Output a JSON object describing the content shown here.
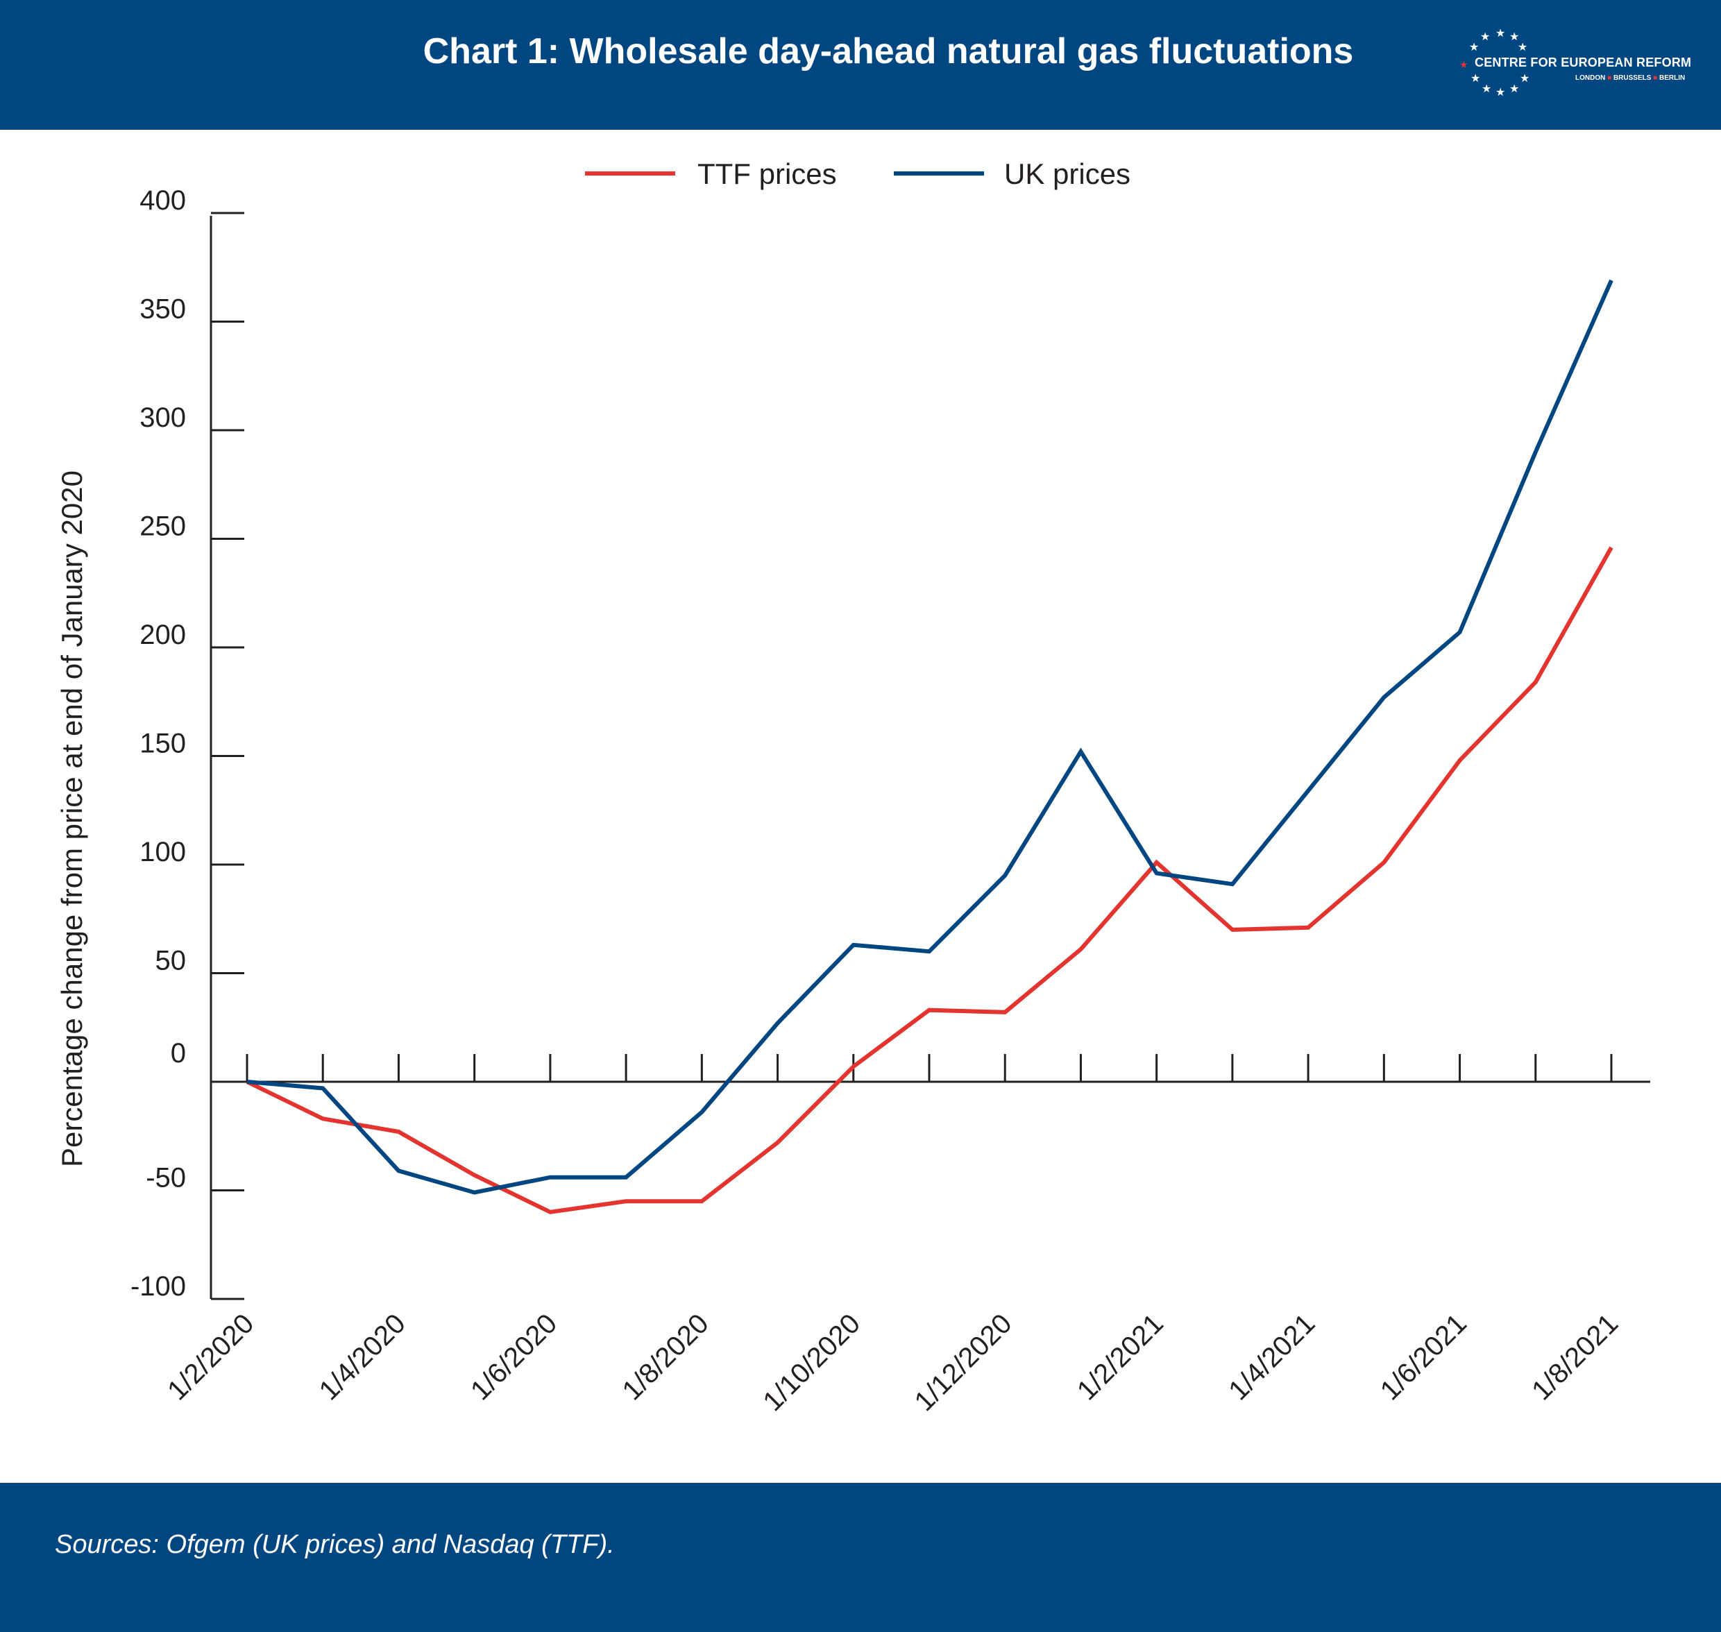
{
  "header": {
    "title": "Chart 1: Wholesale day-ahead natural gas fluctuations",
    "logo": {
      "name": "CENTRE FOR EUROPEAN REFORM",
      "city_1": "LONDON",
      "city_2": "BRUSSELS",
      "city_3": "BERLIN"
    },
    "colors": {
      "background": "#004680",
      "star_accent": "#e3342f"
    }
  },
  "footer": {
    "sources": "Sources: Ofgem (UK prices) and Nasdaq (TTF)."
  },
  "chart_data": {
    "type": "line",
    "title": "Chart 1: Wholesale day-ahead natural gas fluctuations",
    "ylabel": "Percentage change from price at end of January 2020",
    "xlabel": "",
    "ylim": [
      -100,
      400
    ],
    "yticks": [
      400,
      350,
      300,
      250,
      200,
      150,
      100,
      50,
      0,
      -50,
      -100
    ],
    "x": [
      "1/2/2020",
      "1/3/2020",
      "1/4/2020",
      "1/5/2020",
      "1/6/2020",
      "1/7/2020",
      "1/8/2020",
      "1/9/2020",
      "1/10/2020",
      "1/11/2020",
      "1/12/2020",
      "1/1/2021",
      "1/2/2021",
      "1/3/2021",
      "1/4/2021",
      "1/5/2021",
      "1/6/2021",
      "1/7/2021",
      "1/8/2021"
    ],
    "x_tick_labels": [
      "1/2/2020",
      "1/4/2020",
      "1/6/2020",
      "1/8/2020",
      "1/10/2020",
      "1/12/2020",
      "1/2/2021",
      "1/4/2021",
      "1/6/2021",
      "1/8/2021"
    ],
    "legend_position": "top-center",
    "grid": false,
    "series": [
      {
        "name": "TTF prices",
        "color": "#e3342f",
        "values": [
          0,
          -17,
          -23,
          -43,
          -60,
          -55,
          -55,
          -28,
          7,
          33,
          32,
          61,
          101,
          70,
          71,
          101,
          148,
          184,
          246
        ]
      },
      {
        "name": "UK prices",
        "color": "#004680",
        "values": [
          0,
          -3,
          -41,
          -51,
          -44,
          -44,
          -14,
          27,
          63,
          60,
          95,
          152,
          96,
          91,
          134,
          177,
          207,
          290,
          369
        ]
      }
    ]
  }
}
